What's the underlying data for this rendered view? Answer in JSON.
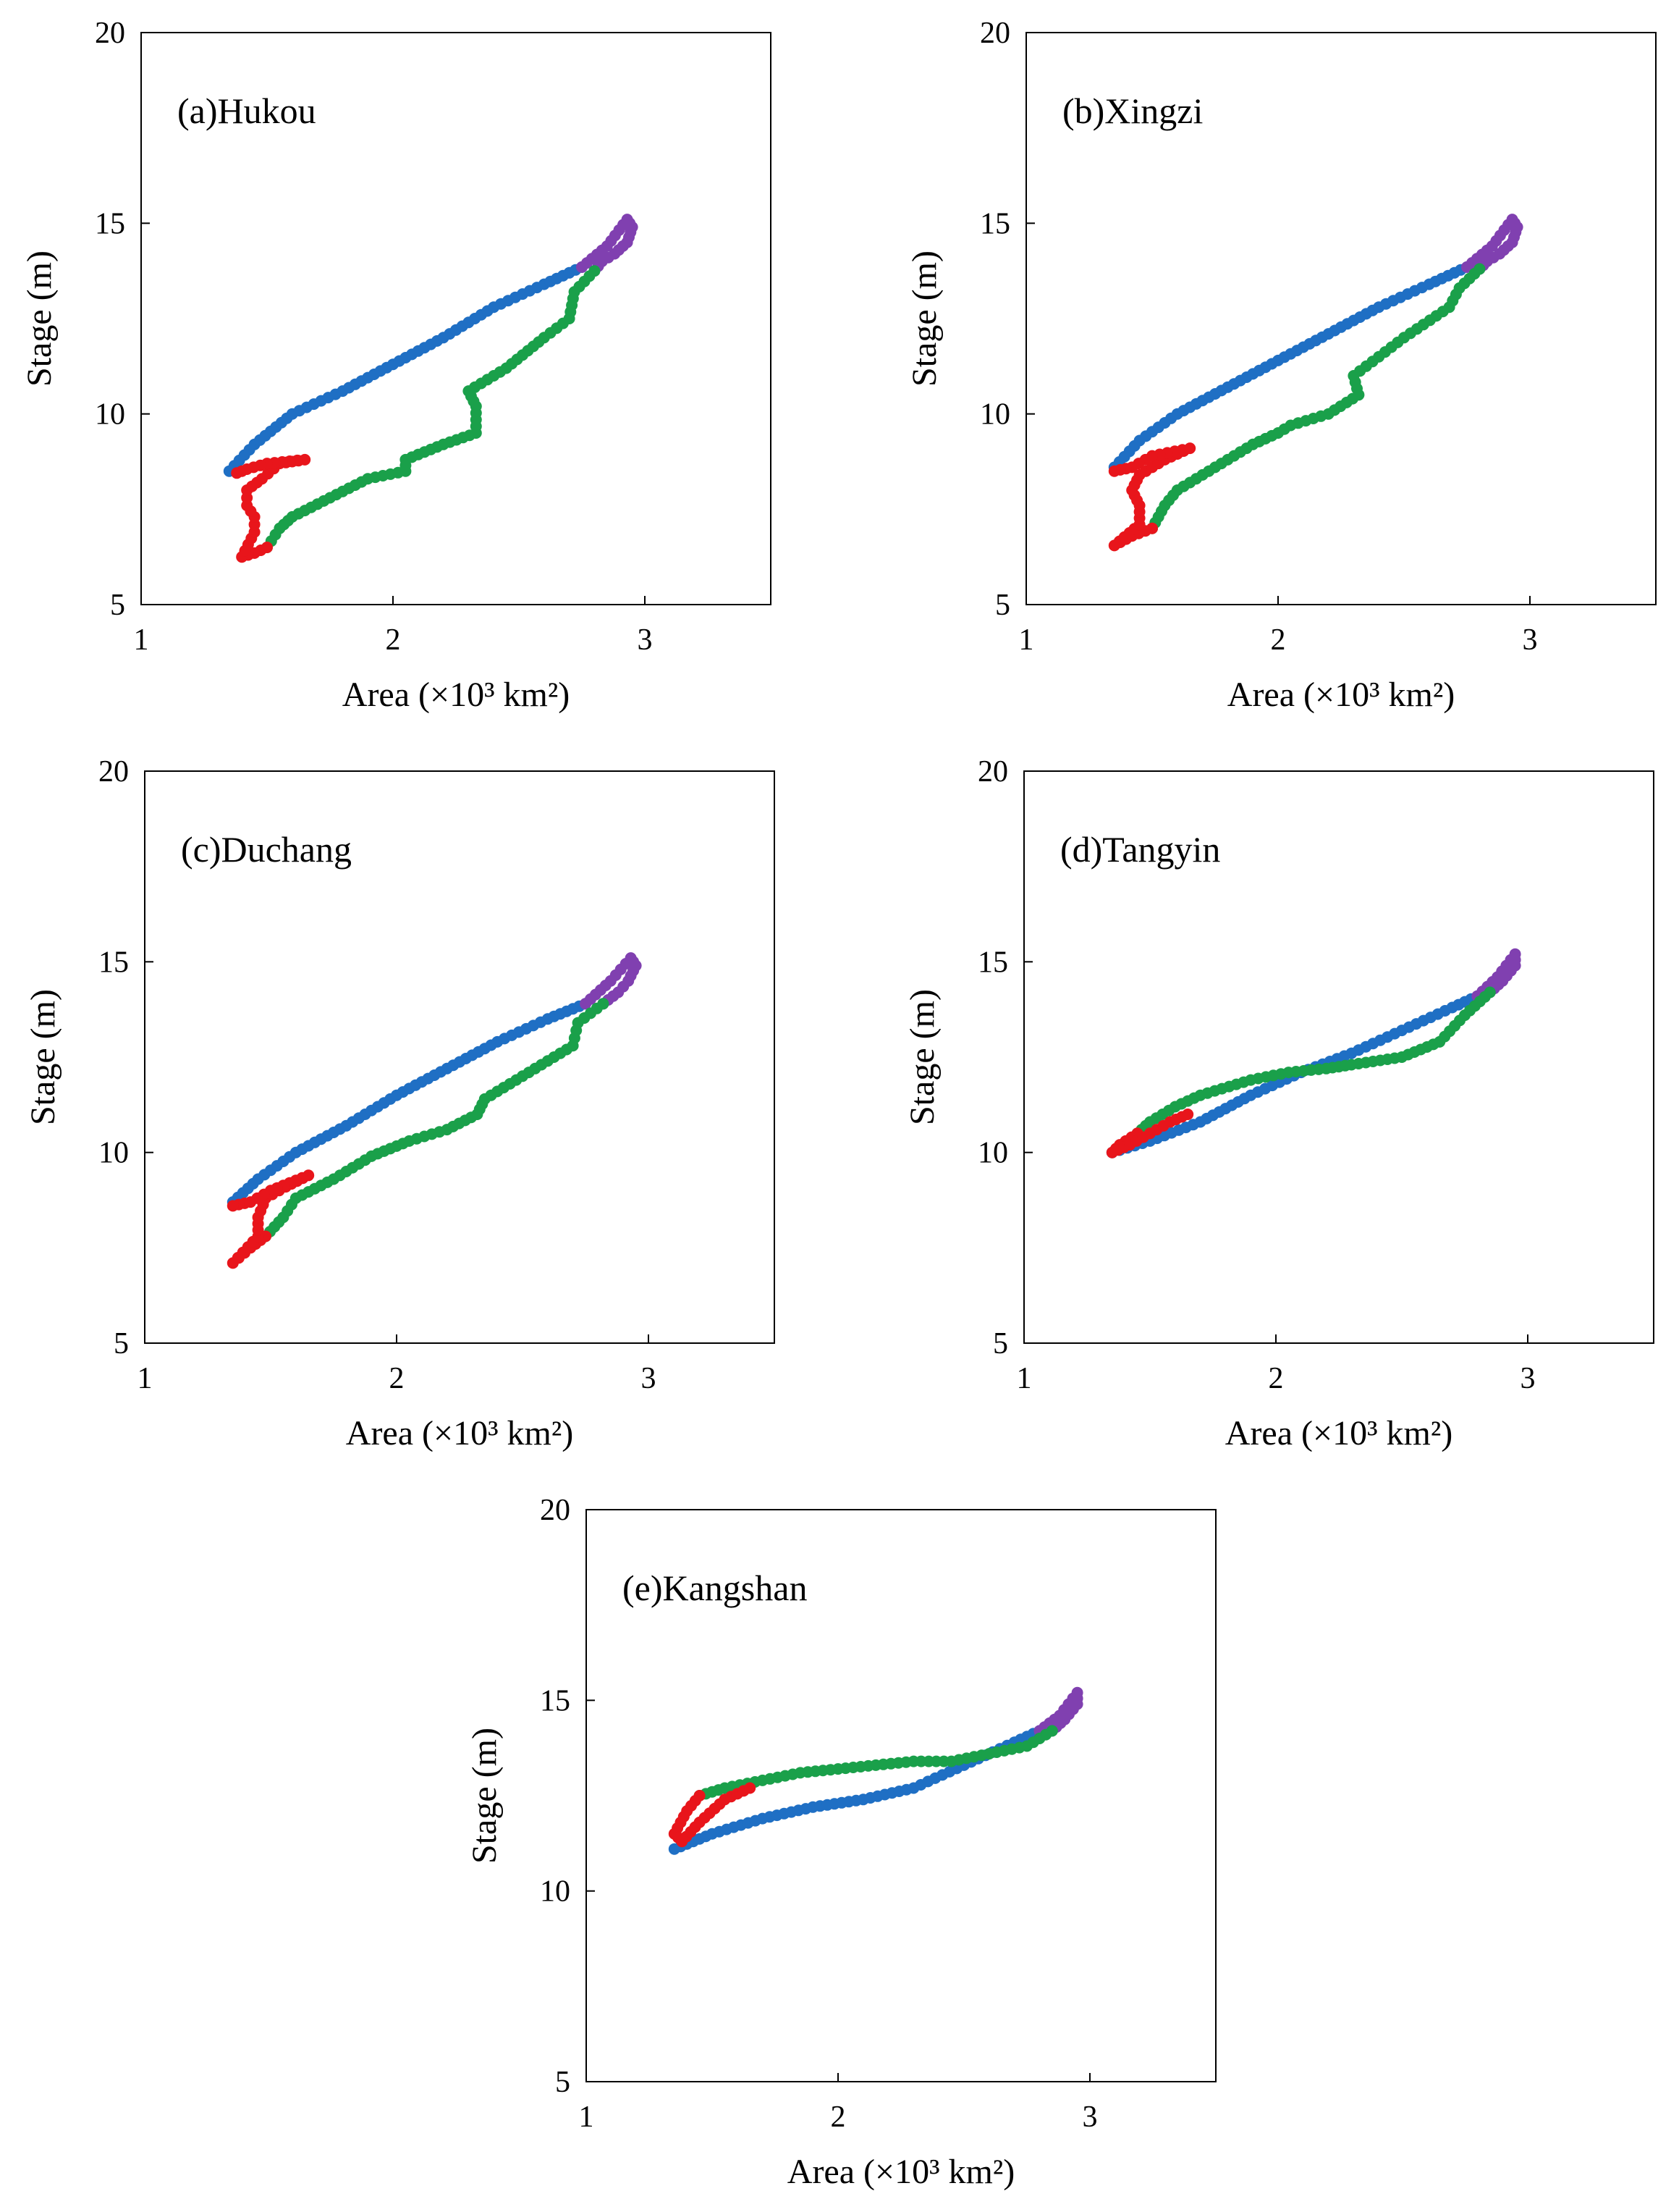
{
  "figure": {
    "panels": [
      {
        "id": "a",
        "title": "(a)Hukou"
      },
      {
        "id": "b",
        "title": "(b)Xingzi"
      },
      {
        "id": "c",
        "title": "(c)Duchang"
      },
      {
        "id": "d",
        "title": "(d)Tangyin"
      },
      {
        "id": "e",
        "title": "(e)Kangshan"
      }
    ]
  },
  "chart_data": [
    {
      "type": "scatter",
      "title": "(a)Hukou",
      "xlabel": "Area (×10³ km²)",
      "ylabel": "Stage (m)",
      "xlim": [
        1,
        3.5
      ],
      "ylim": [
        5,
        20
      ],
      "xticks": [
        1,
        2,
        3
      ],
      "yticks": [
        5,
        10,
        15,
        20
      ],
      "grid": false,
      "series": [
        {
          "color": "#1f6fc4",
          "points": [
            [
              1.35,
              8.5
            ],
            [
              1.45,
              9.2
            ],
            [
              1.6,
              10.0
            ],
            [
              1.8,
              10.6
            ],
            [
              2.0,
              11.3
            ],
            [
              2.2,
              12.0
            ],
            [
              2.4,
              12.8
            ],
            [
              2.6,
              13.4
            ],
            [
              2.75,
              13.85
            ]
          ]
        },
        {
          "color": "#8040b0",
          "points": [
            [
              2.75,
              13.85
            ],
            [
              2.85,
              14.4
            ],
            [
              2.93,
              15.1
            ],
            [
              2.95,
              14.9
            ],
            [
              2.93,
              14.5
            ],
            [
              2.88,
              14.2
            ],
            [
              2.83,
              14.0
            ],
            [
              2.8,
              13.75
            ]
          ]
        },
        {
          "color": "#1aa04a",
          "points": [
            [
              2.8,
              13.75
            ],
            [
              2.72,
              13.2
            ],
            [
              2.7,
              12.5
            ],
            [
              2.6,
              12.0
            ],
            [
              2.45,
              11.2
            ],
            [
              2.3,
              10.6
            ],
            [
              2.33,
              10.2
            ],
            [
              2.33,
              9.5
            ],
            [
              2.2,
              9.2
            ],
            [
              2.05,
              8.8
            ],
            [
              2.05,
              8.5
            ],
            [
              1.9,
              8.3
            ],
            [
              1.75,
              7.8
            ],
            [
              1.6,
              7.3
            ],
            [
              1.55,
              7.0
            ],
            [
              1.5,
              6.5
            ]
          ]
        },
        {
          "color": "#e8151b",
          "points": [
            [
              1.5,
              6.5
            ],
            [
              1.45,
              6.35
            ],
            [
              1.4,
              6.25
            ],
            [
              1.45,
              6.9
            ],
            [
              1.45,
              7.3
            ],
            [
              1.42,
              7.6
            ],
            [
              1.42,
              8.0
            ],
            [
              1.48,
              8.3
            ],
            [
              1.55,
              8.7
            ],
            [
              1.65,
              8.8
            ],
            [
              1.5,
              8.7
            ],
            [
              1.42,
              8.55
            ],
            [
              1.38,
              8.45
            ]
          ]
        }
      ]
    },
    {
      "type": "scatter",
      "title": "(b)Xingzi",
      "xlabel": "Area (×10³ km²)",
      "ylabel": "Stage (m)",
      "xlim": [
        1,
        3.5
      ],
      "ylim": [
        5,
        20
      ],
      "xticks": [
        1,
        2,
        3
      ],
      "yticks": [
        5,
        10,
        15,
        20
      ],
      "grid": false,
      "series": [
        {
          "color": "#1f6fc4",
          "points": [
            [
              1.35,
              8.6
            ],
            [
              1.45,
              9.3
            ],
            [
              1.6,
              10.0
            ],
            [
              1.8,
              10.7
            ],
            [
              2.0,
              11.4
            ],
            [
              2.2,
              12.1
            ],
            [
              2.4,
              12.8
            ],
            [
              2.6,
              13.4
            ],
            [
              2.75,
              13.85
            ]
          ]
        },
        {
          "color": "#8040b0",
          "points": [
            [
              2.75,
              13.85
            ],
            [
              2.85,
              14.4
            ],
            [
              2.93,
              15.1
            ],
            [
              2.95,
              14.9
            ],
            [
              2.93,
              14.5
            ],
            [
              2.88,
              14.2
            ],
            [
              2.83,
              14.0
            ],
            [
              2.8,
              13.8
            ]
          ]
        },
        {
          "color": "#1aa04a",
          "points": [
            [
              2.8,
              13.8
            ],
            [
              2.72,
              13.3
            ],
            [
              2.68,
              12.8
            ],
            [
              2.5,
              12.0
            ],
            [
              2.4,
              11.5
            ],
            [
              2.3,
              11.0
            ],
            [
              2.32,
              10.5
            ],
            [
              2.2,
              10.0
            ],
            [
              2.05,
              9.7
            ],
            [
              2.0,
              9.5
            ],
            [
              1.9,
              9.2
            ],
            [
              1.75,
              8.6
            ],
            [
              1.6,
              8.0
            ],
            [
              1.55,
              7.6
            ],
            [
              1.5,
              7.0
            ]
          ]
        },
        {
          "color": "#e8151b",
          "points": [
            [
              1.5,
              7.0
            ],
            [
              1.42,
              6.8
            ],
            [
              1.35,
              6.55
            ],
            [
              1.45,
              7.1
            ],
            [
              1.45,
              7.6
            ],
            [
              1.42,
              8.0
            ],
            [
              1.45,
              8.4
            ],
            [
              1.55,
              8.8
            ],
            [
              1.65,
              9.1
            ],
            [
              1.5,
              8.9
            ],
            [
              1.42,
              8.6
            ],
            [
              1.35,
              8.5
            ]
          ]
        }
      ]
    },
    {
      "type": "scatter",
      "title": "(c)Duchang",
      "xlabel": "Area (×10³ km²)",
      "ylabel": "Stage (m)",
      "xlim": [
        1,
        3.5
      ],
      "ylim": [
        5,
        20
      ],
      "xticks": [
        1,
        2,
        3
      ],
      "yticks": [
        5,
        10,
        15,
        20
      ],
      "grid": false,
      "series": [
        {
          "color": "#1f6fc4",
          "points": [
            [
              1.35,
              8.7
            ],
            [
              1.45,
              9.3
            ],
            [
              1.6,
              10.0
            ],
            [
              1.8,
              10.7
            ],
            [
              2.0,
              11.5
            ],
            [
              2.2,
              12.2
            ],
            [
              2.4,
              12.9
            ],
            [
              2.6,
              13.5
            ],
            [
              2.75,
              13.9
            ]
          ]
        },
        {
          "color": "#8040b0",
          "points": [
            [
              2.75,
              13.9
            ],
            [
              2.85,
              14.5
            ],
            [
              2.93,
              15.1
            ],
            [
              2.95,
              14.9
            ],
            [
              2.92,
              14.5
            ],
            [
              2.88,
              14.2
            ],
            [
              2.82,
              13.9
            ]
          ]
        },
        {
          "color": "#1aa04a",
          "points": [
            [
              2.82,
              13.9
            ],
            [
              2.72,
              13.4
            ],
            [
              2.7,
              12.8
            ],
            [
              2.5,
              12.0
            ],
            [
              2.35,
              11.4
            ],
            [
              2.32,
              11.0
            ],
            [
              2.2,
              10.6
            ],
            [
              2.05,
              10.3
            ],
            [
              1.9,
              9.9
            ],
            [
              1.75,
              9.3
            ],
            [
              1.6,
              8.8
            ],
            [
              1.55,
              8.3
            ],
            [
              1.48,
              7.8
            ]
          ]
        },
        {
          "color": "#e8151b",
          "points": [
            [
              1.48,
              7.8
            ],
            [
              1.42,
              7.5
            ],
            [
              1.35,
              7.1
            ],
            [
              1.45,
              7.8
            ],
            [
              1.45,
              8.3
            ],
            [
              1.48,
              8.8
            ],
            [
              1.56,
              9.1
            ],
            [
              1.65,
              9.4
            ],
            [
              1.5,
              9.0
            ],
            [
              1.42,
              8.7
            ],
            [
              1.35,
              8.6
            ]
          ]
        }
      ]
    },
    {
      "type": "scatter",
      "title": "(d)Tangyin",
      "xlabel": "Area (×10³ km²)",
      "ylabel": "Stage (m)",
      "xlim": [
        1,
        3.5
      ],
      "ylim": [
        5,
        20
      ],
      "xticks": [
        1,
        2,
        3
      ],
      "yticks": [
        5,
        10,
        15,
        20
      ],
      "grid": false,
      "series": [
        {
          "color": "#1f6fc4",
          "points": [
            [
              1.35,
              10.0
            ],
            [
              1.5,
              10.3
            ],
            [
              1.7,
              10.8
            ],
            [
              1.9,
              11.5
            ],
            [
              2.1,
              12.1
            ],
            [
              2.3,
              12.6
            ],
            [
              2.5,
              13.2
            ],
            [
              2.7,
              13.8
            ],
            [
              2.8,
              14.1
            ]
          ]
        },
        {
          "color": "#8040b0",
          "points": [
            [
              2.8,
              14.1
            ],
            [
              2.88,
              14.6
            ],
            [
              2.95,
              15.2
            ],
            [
              2.95,
              14.9
            ],
            [
              2.9,
              14.5
            ],
            [
              2.85,
              14.2
            ]
          ]
        },
        {
          "color": "#1aa04a",
          "points": [
            [
              2.85,
              14.2
            ],
            [
              2.75,
              13.6
            ],
            [
              2.65,
              12.9
            ],
            [
              2.5,
              12.5
            ],
            [
              2.3,
              12.3
            ],
            [
              2.2,
              12.2
            ],
            [
              2.05,
              12.1
            ],
            [
              1.9,
              11.9
            ],
            [
              1.7,
              11.5
            ],
            [
              1.6,
              11.2
            ],
            [
              1.5,
              10.8
            ],
            [
              1.45,
              10.5
            ]
          ]
        },
        {
          "color": "#e8151b",
          "points": [
            [
              1.45,
              10.5
            ],
            [
              1.38,
              10.2
            ],
            [
              1.35,
              10.0
            ],
            [
              1.42,
              10.2
            ],
            [
              1.5,
              10.5
            ],
            [
              1.58,
              10.8
            ],
            [
              1.65,
              11.0
            ]
          ]
        }
      ]
    },
    {
      "type": "scatter",
      "title": "(e)Kangshan",
      "xlabel": "Area (×10³ km²)",
      "ylabel": "Stage (m)",
      "xlim": [
        1,
        3.5
      ],
      "ylim": [
        5,
        20
      ],
      "xticks": [
        1,
        2,
        3
      ],
      "yticks": [
        5,
        10,
        15,
        20
      ],
      "grid": false,
      "series": [
        {
          "color": "#1f6fc4",
          "points": [
            [
              1.35,
              11.1
            ],
            [
              1.5,
              11.5
            ],
            [
              1.7,
              11.9
            ],
            [
              1.9,
              12.2
            ],
            [
              2.1,
              12.4
            ],
            [
              2.3,
              12.7
            ],
            [
              2.5,
              13.3
            ],
            [
              2.7,
              13.9
            ],
            [
              2.8,
              14.2
            ]
          ]
        },
        {
          "color": "#8040b0",
          "points": [
            [
              2.8,
              14.2
            ],
            [
              2.88,
              14.6
            ],
            [
              2.95,
              15.2
            ],
            [
              2.95,
              14.9
            ],
            [
              2.9,
              14.5
            ],
            [
              2.85,
              14.2
            ]
          ]
        },
        {
          "color": "#1aa04a",
          "points": [
            [
              2.85,
              14.2
            ],
            [
              2.75,
              13.8
            ],
            [
              2.6,
              13.6
            ],
            [
              2.45,
              13.4
            ],
            [
              2.3,
              13.4
            ],
            [
              2.15,
              13.3
            ],
            [
              2.0,
              13.2
            ],
            [
              1.85,
              13.1
            ],
            [
              1.7,
              12.9
            ],
            [
              1.55,
              12.7
            ],
            [
              1.45,
              12.5
            ]
          ]
        },
        {
          "color": "#e8151b",
          "points": [
            [
              1.45,
              12.5
            ],
            [
              1.4,
              12.1
            ],
            [
              1.35,
              11.5
            ],
            [
              1.38,
              11.3
            ],
            [
              1.45,
              11.8
            ],
            [
              1.55,
              12.4
            ],
            [
              1.65,
              12.7
            ]
          ]
        }
      ]
    }
  ]
}
